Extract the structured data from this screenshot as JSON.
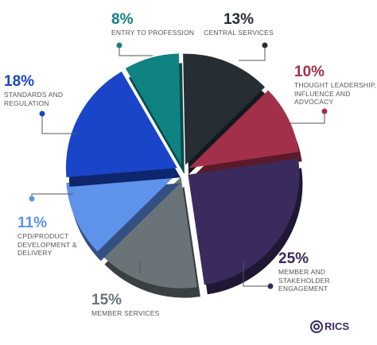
{
  "chart_data": {
    "type": "pie",
    "categories": [
      "ENTRY TO PROFESSION",
      "CENTRAL SERVICES",
      "THOUGHT LEADERSHIP, INFLUENCE AND ADVOCACY",
      "MEMBER AND STAKEHOLDER ENGAGEMENT",
      "MEMBER SERVICES",
      "CPD/PRODUCT DEVELOPMENT & DELIVERY",
      "STANDARDS AND REGULATION"
    ],
    "values": [
      8,
      13,
      10,
      25,
      15,
      11,
      18
    ],
    "value_labels": [
      "8%",
      "13%",
      "10%",
      "25%",
      "15%",
      "11%",
      "18%"
    ],
    "colors": [
      "#0f8282",
      "#262e34",
      "#a3304a",
      "#3b2a5e",
      "#6a7478",
      "#5f92ea",
      "#1a45c8"
    ]
  },
  "logo": "RICS"
}
